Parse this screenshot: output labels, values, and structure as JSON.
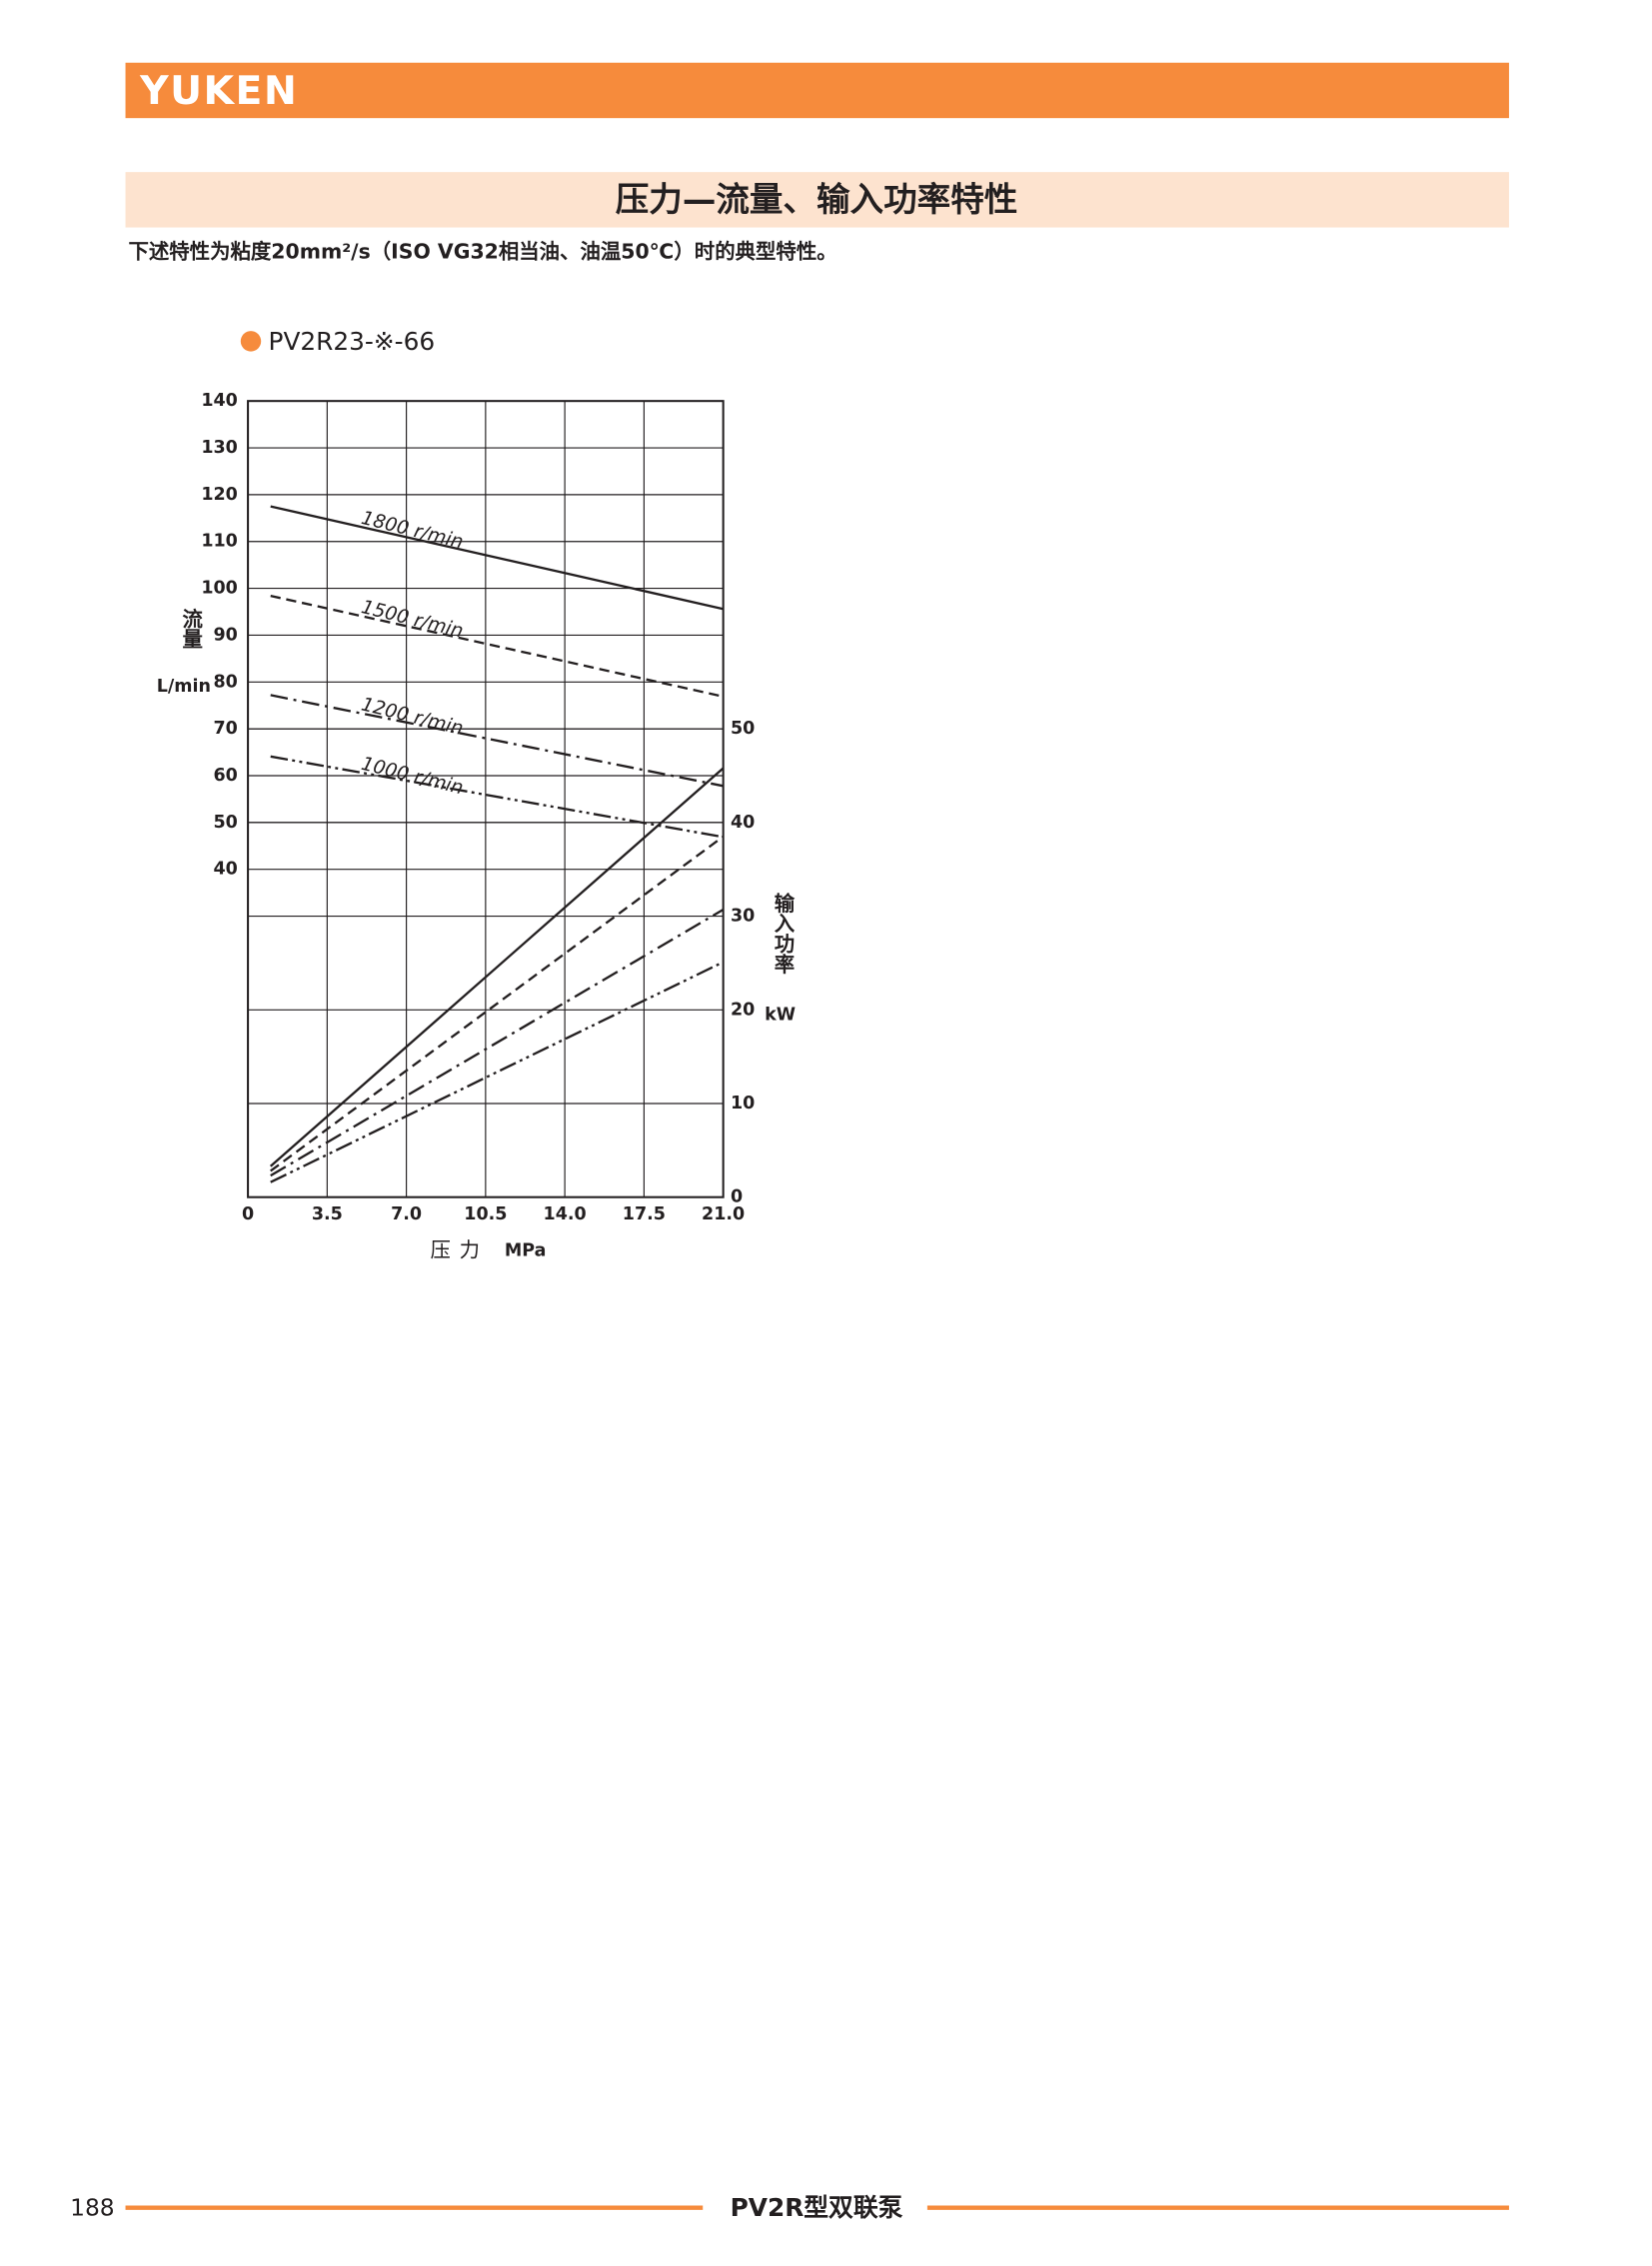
{
  "header": {
    "logo": "YUKEN",
    "title": "压力—流量、输入功率特性",
    "note": "下述特性为粘度20mm²/s（ISO VG32相当油、油温50℃）时的典型特性。"
  },
  "chart_data": {
    "type": "line",
    "subtitle": "PV2R23-※-66",
    "legend_color": "#f68b3c",
    "x_label": "压力",
    "x_unit": "MPa",
    "y_label": "流量",
    "y_unit": "L/min",
    "y2_label": "输入功率",
    "y2_unit": "kW",
    "xlim": [
      0,
      21
    ],
    "xticks": [
      0,
      3.5,
      {
        "value": 7,
        "label": "7.0"
      },
      10.5,
      {
        "value": 14,
        "label": "14.0"
      },
      17.5,
      {
        "value": 21,
        "label": "21.0"
      }
    ],
    "ylim": [
      -30,
      140
    ],
    "yticks": [
      40,
      50,
      60,
      70,
      80,
      90,
      100,
      110,
      120,
      130,
      140
    ],
    "y2lim": [
      0,
      85
    ],
    "y2ticks": [
      0,
      10,
      20,
      30,
      40,
      50
    ],
    "grid": true,
    "x": [
      1,
      21
    ],
    "series": [
      {
        "name": "1800 r/min",
        "color": "#231f20",
        "style": "solid",
        "values": [
          117.5,
          95.6
        ]
      },
      {
        "name": "1500 r/min",
        "color": "#231f20",
        "style": "dashed",
        "values": [
          98.4,
          76.9
        ]
      },
      {
        "name": "1200 r/min",
        "color": "#231f20",
        "style": "dashdot",
        "values": [
          77.2,
          57.8
        ]
      },
      {
        "name": "1000 r/min",
        "color": "#231f20",
        "style": "dashdotdot",
        "values": [
          64.1,
          46.9
        ]
      },
      {
        "color": "#231f20",
        "style": "solid",
        "axis": "y2",
        "values": [
          3.3,
          45.8
        ]
      },
      {
        "color": "#231f20",
        "style": "dashed",
        "axis": "y2",
        "values": [
          2.8,
          38.5
        ]
      },
      {
        "color": "#231f20",
        "style": "dashdot",
        "axis": "y2",
        "values": [
          2.3,
          30.7
        ]
      },
      {
        "color": "#231f20",
        "style": "dashdotdot",
        "axis": "y2",
        "values": [
          1.6,
          25.1
        ]
      }
    ]
  },
  "footer": {
    "page": "188",
    "product": "PV2R型双联泵"
  }
}
